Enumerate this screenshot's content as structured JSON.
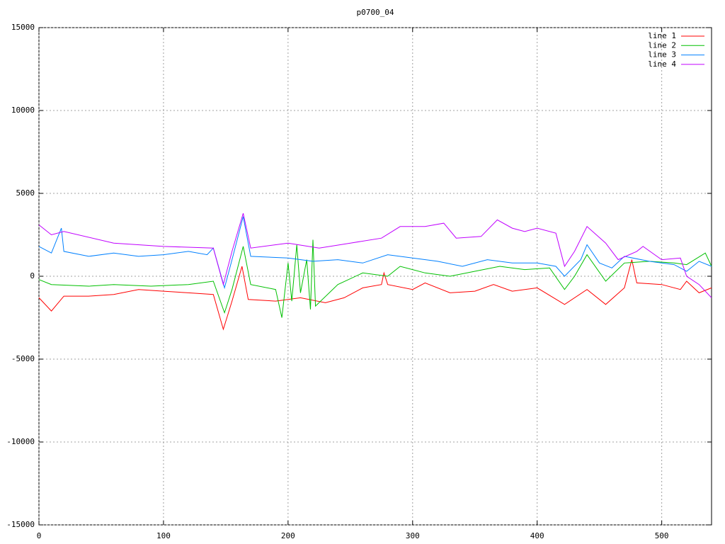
{
  "chart_data": {
    "type": "line",
    "title": "p0700_04",
    "xlim": [
      0,
      540
    ],
    "xticks": [
      0,
      100,
      200,
      300,
      400,
      500
    ],
    "ylim": [
      -15000,
      15000
    ],
    "yticks": [
      -15000,
      -10000,
      -5000,
      0,
      5000,
      10000,
      15000
    ],
    "grid": true,
    "legend": "top-right",
    "series": [
      {
        "name": "line 1",
        "color": "#ff0000",
        "x": [
          0,
          10,
          20,
          40,
          60,
          80,
          100,
          120,
          140,
          148,
          155,
          163,
          168,
          190,
          210,
          230,
          245,
          260,
          275,
          277,
          280,
          300,
          310,
          330,
          350,
          365,
          380,
          400,
          422,
          440,
          455,
          470,
          476,
          480,
          500,
          515,
          520,
          530,
          540
        ],
        "values": [
          -1300,
          -2100,
          -1200,
          -1200,
          -1100,
          -800,
          -900,
          -1000,
          -1100,
          -3200,
          -1500,
          600,
          -1400,
          -1500,
          -1300,
          -1600,
          -1300,
          -700,
          -500,
          200,
          -500,
          -800,
          -400,
          -1000,
          -900,
          -500,
          -900,
          -700,
          -1700,
          -800,
          -1700,
          -700,
          1000,
          -400,
          -500,
          -800,
          -300,
          -1000,
          -700
        ]
      },
      {
        "name": "line 2",
        "color": "#00c000",
        "x": [
          0,
          10,
          40,
          60,
          90,
          120,
          140,
          149,
          155,
          164,
          170,
          190,
          195,
          200,
          203,
          207,
          210,
          215,
          218,
          220,
          222,
          240,
          260,
          280,
          290,
          310,
          330,
          350,
          370,
          390,
          410,
          422,
          430,
          440,
          455,
          470,
          490,
          510,
          520,
          535,
          540
        ],
        "values": [
          -200,
          -500,
          -600,
          -500,
          -600,
          -500,
          -300,
          -2200,
          -800,
          1800,
          -500,
          -800,
          -2500,
          800,
          -1500,
          1900,
          -1000,
          1000,
          -2000,
          2200,
          -1800,
          -500,
          200,
          0,
          600,
          200,
          0,
          300,
          600,
          400,
          500,
          -800,
          0,
          1300,
          -300,
          800,
          900,
          800,
          700,
          1400,
          600
        ]
      },
      {
        "name": "line 3",
        "color": "#0080ff",
        "x": [
          0,
          10,
          18,
          20,
          40,
          60,
          80,
          100,
          120,
          135,
          140,
          149,
          155,
          164,
          170,
          200,
          220,
          240,
          260,
          280,
          300,
          320,
          340,
          360,
          380,
          400,
          415,
          422,
          435,
          440,
          450,
          460,
          470,
          490,
          510,
          520,
          530,
          540
        ],
        "values": [
          1800,
          1400,
          2900,
          1500,
          1200,
          1400,
          1200,
          1300,
          1500,
          1300,
          1700,
          -700,
          1000,
          3600,
          1200,
          1100,
          900,
          1000,
          800,
          1300,
          1100,
          900,
          600,
          1000,
          800,
          800,
          600,
          0,
          1000,
          1900,
          800,
          500,
          1200,
          900,
          700,
          300,
          900,
          600
        ]
      },
      {
        "name": "line 4",
        "color": "#c000ff",
        "x": [
          0,
          10,
          20,
          60,
          100,
          140,
          148,
          155,
          164,
          170,
          200,
          225,
          250,
          275,
          290,
          310,
          325,
          335,
          355,
          368,
          380,
          390,
          400,
          415,
          422,
          430,
          440,
          455,
          465,
          480,
          485,
          500,
          515,
          520,
          530,
          540
        ],
        "values": [
          3100,
          2500,
          2700,
          2000,
          1800,
          1700,
          -500,
          1500,
          3800,
          1700,
          2000,
          1700,
          2000,
          2300,
          3000,
          3000,
          3200,
          2300,
          2400,
          3400,
          2900,
          2700,
          2900,
          2600,
          600,
          1500,
          3000,
          2000,
          1000,
          1500,
          1800,
          1000,
          1100,
          0,
          -500,
          -1300
        ]
      }
    ]
  }
}
